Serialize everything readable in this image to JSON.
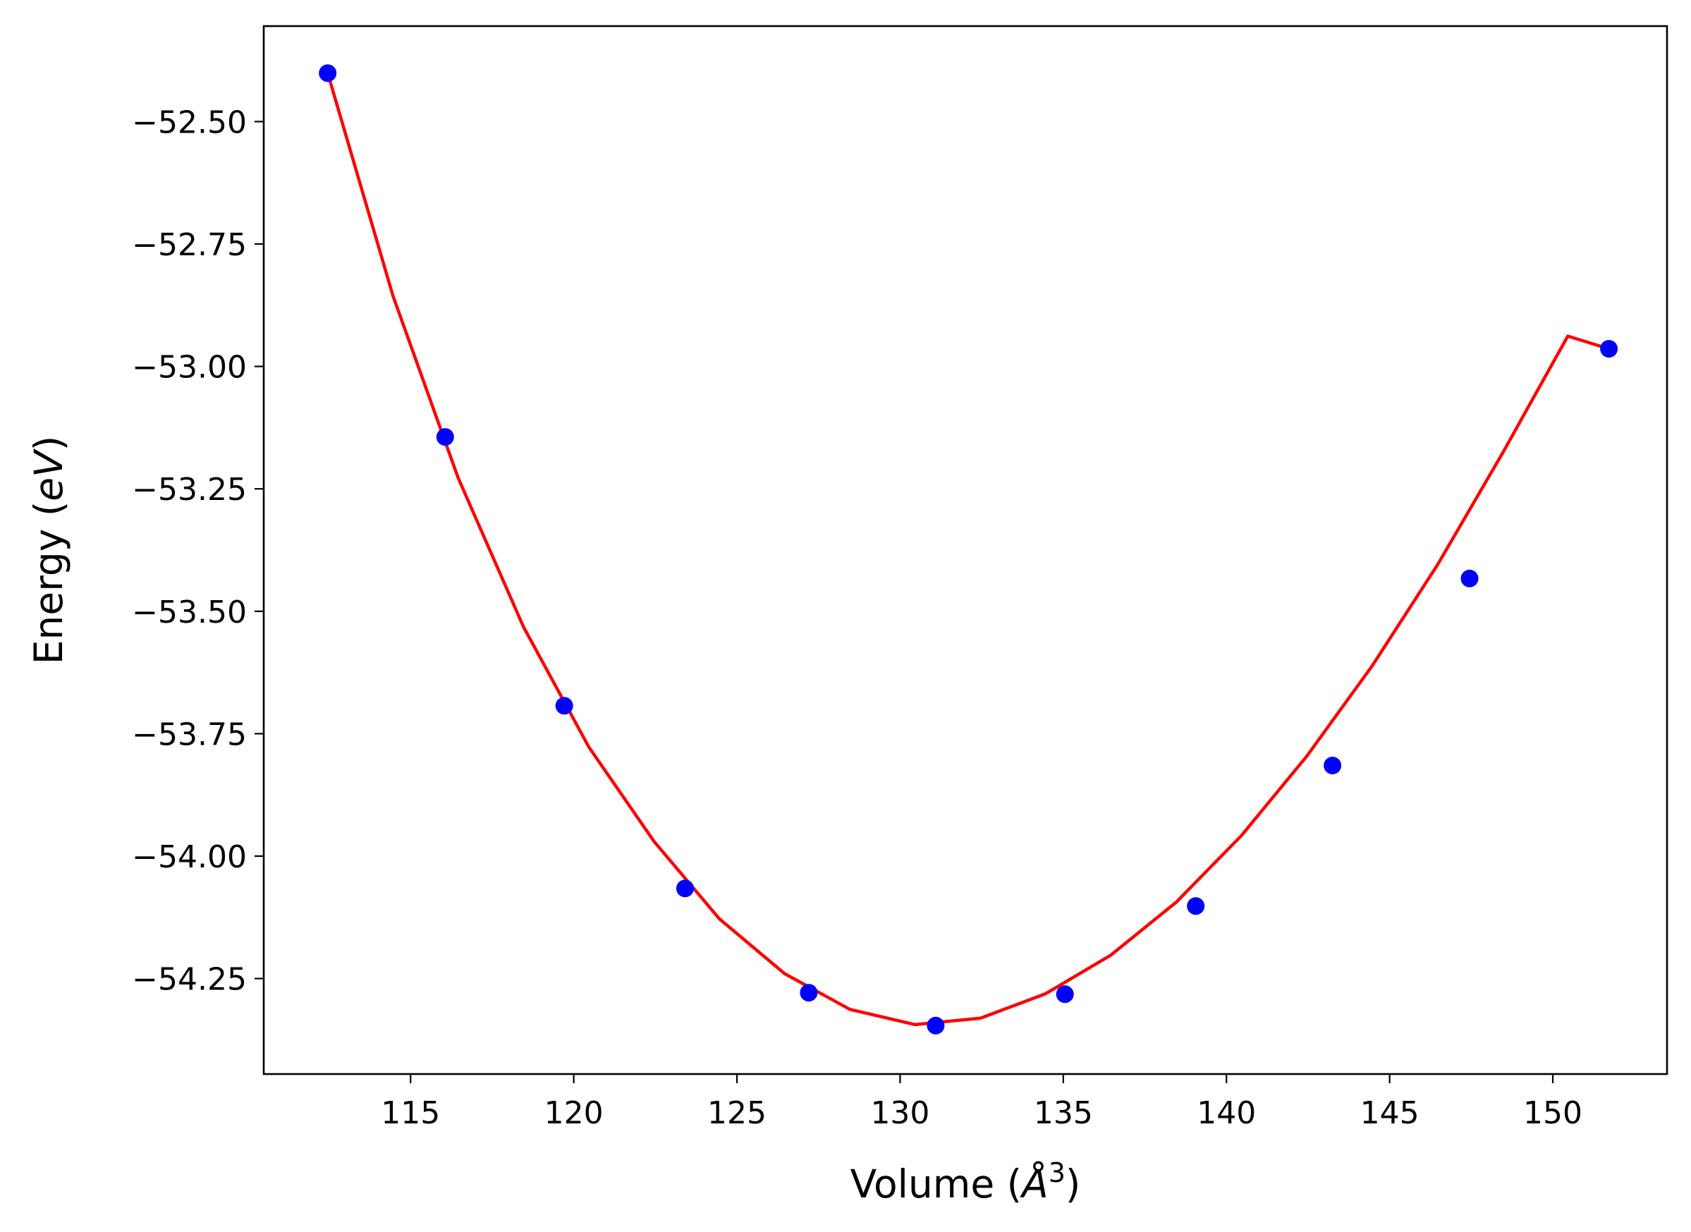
{
  "chart_data": {
    "type": "scatter",
    "title": "",
    "xlabel": {
      "prefix": "Volume (",
      "unit": "Å",
      "sup": "3",
      "suffix": ")"
    },
    "ylabel": {
      "prefix": "Energy (",
      "unit": "eV",
      "suffix": ")"
    },
    "xlim": [
      110.5,
      153.5
    ],
    "ylim": [
      -54.445,
      -52.305
    ],
    "xticks": [
      115,
      120,
      125,
      130,
      135,
      140,
      145,
      150
    ],
    "xtick_labels": [
      "115",
      "120",
      "125",
      "130",
      "135",
      "140",
      "145",
      "150"
    ],
    "yticks": [
      -52.5,
      -52.75,
      -53.0,
      -53.25,
      -53.5,
      -53.75,
      -54.0,
      -54.25
    ],
    "ytick_labels": [
      "−52.50",
      "−52.75",
      "−53.00",
      "−53.25",
      "−53.50",
      "−53.75",
      "−54.00",
      "−54.25"
    ],
    "grid": false,
    "series": [
      {
        "kind": "points",
        "color": "#0000ff",
        "x": [
          112.46,
          116.06,
          119.71,
          123.41,
          127.2,
          131.09,
          135.05,
          139.06,
          143.25,
          147.45,
          151.72
        ],
        "y": [
          -52.401,
          -53.144,
          -53.693,
          -54.066,
          -54.279,
          -54.346,
          -54.282,
          -54.102,
          -53.815,
          -53.433,
          -52.964
        ]
      },
      {
        "kind": "fit-line",
        "color": "#ff0000",
        "x": [
          112.46,
          114.46,
          116.46,
          118.46,
          120.46,
          122.46,
          124.46,
          126.46,
          128.46,
          130.46,
          132.46,
          134.46,
          136.46,
          138.46,
          140.46,
          142.46,
          144.46,
          146.46,
          148.46,
          150.46,
          151.72
        ],
        "y": [
          -52.401,
          -52.856,
          -53.228,
          -53.532,
          -53.777,
          -53.97,
          -54.128,
          -54.24,
          -54.313,
          -54.344,
          -54.331,
          -54.281,
          -54.202,
          -54.094,
          -53.958,
          -53.796,
          -53.612,
          -53.406,
          -53.177,
          -52.938,
          -52.964
        ]
      }
    ]
  }
}
